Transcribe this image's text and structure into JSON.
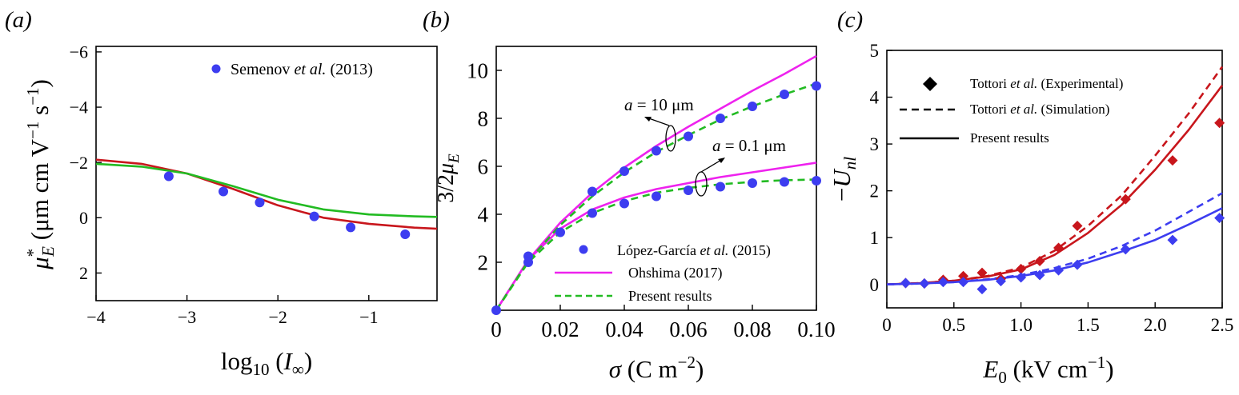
{
  "figure": {
    "panels": [
      "(a)",
      "(b)",
      "(c)"
    ]
  },
  "colors": {
    "blue": "#3d3df0",
    "red": "#c8161c",
    "green": "#22bb22",
    "magenta": "#ee22ee",
    "black": "#000000"
  },
  "chart_data": [
    {
      "id": "a",
      "type": "scatter",
      "xlabel": "log10 (I∞)",
      "ylabel": "μE* (μm cm V−1 s−1)",
      "xlim": [
        -4,
        -0.25
      ],
      "ylim": [
        -6.2,
        3
      ],
      "y_inverted": true,
      "xticks": [
        -4,
        -3,
        -2,
        -1
      ],
      "xtick_labels": [
        "−4",
        "−3",
        "−2",
        "−1"
      ],
      "yticks": [
        -6,
        -4,
        -2,
        0,
        2
      ],
      "ytick_labels": [
        "−6",
        "−4",
        "−2",
        "0",
        "2"
      ],
      "legend_position": "top-right",
      "series": [
        {
          "name": "Semenov et al. (2013)",
          "kind": "points",
          "marker": "circle",
          "color": "blue",
          "x": [
            -3.2,
            -2.6,
            -2.2,
            -1.6,
            -1.2,
            -0.6
          ],
          "y": [
            -1.5,
            -0.95,
            -0.55,
            -0.05,
            0.35,
            0.6
          ]
        },
        {
          "kind": "line",
          "color": "red",
          "x": [
            -4,
            -3.5,
            -3,
            -2.5,
            -2,
            -1.5,
            -1,
            -0.5,
            -0.25
          ],
          "y": [
            -2.1,
            -1.95,
            -1.6,
            -1.05,
            -0.45,
            0.0,
            0.22,
            0.36,
            0.4
          ]
        },
        {
          "kind": "line",
          "color": "green",
          "x": [
            -4,
            -3.5,
            -3,
            -2.5,
            -2,
            -1.5,
            -1,
            -0.5,
            -0.25
          ],
          "y": [
            -1.95,
            -1.85,
            -1.6,
            -1.15,
            -0.65,
            -0.3,
            -0.12,
            -0.05,
            -0.03
          ]
        }
      ]
    },
    {
      "id": "b",
      "type": "line",
      "xlabel": "σ (C m−2)",
      "ylabel": "3/2μE",
      "xlim": [
        0,
        0.1
      ],
      "ylim": [
        0,
        11
      ],
      "xticks": [
        0,
        0.02,
        0.04,
        0.06,
        0.08,
        0.1
      ],
      "xtick_labels": [
        "0",
        "0.02",
        "0.04",
        "0.06",
        "0.08",
        "0.10"
      ],
      "yticks": [
        2,
        4,
        6,
        8,
        10
      ],
      "ytick_labels": [
        "2",
        "4",
        "6",
        "8",
        "10"
      ],
      "legend_position": "bottom-right",
      "annotations": [
        "a = 10 μm",
        "a = 0.1 μm"
      ],
      "series": [
        {
          "name": "López-García et al. (2015)",
          "kind": "points",
          "marker": "circle",
          "color": "blue",
          "x": [
            0,
            0.01,
            0.02,
            0.03,
            0.04,
            0.05,
            0.06,
            0.07,
            0.08,
            0.09,
            0.1
          ],
          "y": [
            0,
            2.25,
            3.25,
            4.95,
            5.8,
            6.65,
            7.25,
            8.0,
            8.5,
            9.0,
            9.35
          ]
        },
        {
          "kind": "points",
          "marker": "circle",
          "color": "blue",
          "x": [
            0.01,
            0.03,
            0.04,
            0.05,
            0.06,
            0.07,
            0.08,
            0.09,
            0.1
          ],
          "y": [
            2.0,
            4.05,
            4.45,
            4.75,
            5.0,
            5.15,
            5.3,
            5.35,
            5.4
          ]
        },
        {
          "name": "Ohshima (2017)",
          "kind": "line",
          "color": "magenta",
          "x": [
            0,
            0.01,
            0.02,
            0.03,
            0.04,
            0.05,
            0.06,
            0.07,
            0.08,
            0.09,
            0.1
          ],
          "y": [
            0,
            2.1,
            3.65,
            4.9,
            5.95,
            6.85,
            7.65,
            8.4,
            9.15,
            9.85,
            10.6
          ]
        },
        {
          "kind": "line",
          "color": "magenta",
          "x": [
            0,
            0.01,
            0.02,
            0.03,
            0.04,
            0.05,
            0.06,
            0.07,
            0.08,
            0.09,
            0.1
          ],
          "y": [
            0,
            2.1,
            3.4,
            4.2,
            4.7,
            5.05,
            5.3,
            5.55,
            5.75,
            5.95,
            6.15
          ]
        },
        {
          "name": "Present results",
          "kind": "dashed",
          "color": "green",
          "x": [
            0,
            0.01,
            0.02,
            0.03,
            0.04,
            0.05,
            0.06,
            0.07,
            0.08,
            0.09,
            0.1
          ],
          "y": [
            0,
            2.05,
            3.55,
            4.75,
            5.75,
            6.6,
            7.3,
            7.95,
            8.5,
            9.0,
            9.45
          ]
        },
        {
          "kind": "dashed",
          "color": "green",
          "x": [
            0,
            0.01,
            0.02,
            0.03,
            0.04,
            0.05,
            0.06,
            0.07,
            0.08,
            0.09,
            0.1
          ],
          "y": [
            0,
            2.0,
            3.25,
            4.05,
            4.55,
            4.9,
            5.1,
            5.25,
            5.35,
            5.42,
            5.45
          ]
        }
      ]
    },
    {
      "id": "c",
      "type": "scatter",
      "xlabel": "E0 (kV cm−1)",
      "ylabel": "−Unl",
      "xlim": [
        0,
        2.5
      ],
      "ylim": [
        -0.5,
        5
      ],
      "xticks": [
        0,
        0.5,
        1.0,
        1.5,
        2.0,
        2.5
      ],
      "xtick_labels": [
        "0",
        "0.5",
        "1.0",
        "1.5",
        "2.0",
        "2.5"
      ],
      "yticks": [
        0,
        1,
        2,
        3,
        4,
        5
      ],
      "ytick_labels": [
        "0",
        "1",
        "2",
        "3",
        "4",
        "5"
      ],
      "legend_position": "top-left",
      "series": [
        {
          "name": "Tottori et al. (Experimental)",
          "kind": "legend-only",
          "marker": "diamond",
          "color": "black"
        },
        {
          "name": "Tottori et al. (Simulation)",
          "kind": "legend-only",
          "line": "dashed",
          "color": "black"
        },
        {
          "name": "Present results",
          "kind": "legend-only",
          "line": "solid",
          "color": "black"
        },
        {
          "kind": "points",
          "marker": "diamond",
          "color": "red",
          "x": [
            0.14,
            0.28,
            0.42,
            0.57,
            0.71,
            0.85,
            1.0,
            1.14,
            1.28,
            1.42,
            1.78,
            2.13,
            2.48
          ],
          "y": [
            0.03,
            0.02,
            0.1,
            0.18,
            0.25,
            0.12,
            0.33,
            0.5,
            0.78,
            1.25,
            1.82,
            2.65,
            3.45
          ]
        },
        {
          "kind": "points",
          "marker": "diamond",
          "color": "blue",
          "x": [
            0.14,
            0.28,
            0.42,
            0.57,
            0.71,
            0.85,
            1.0,
            1.14,
            1.28,
            1.42,
            1.78,
            2.13,
            2.48
          ],
          "y": [
            0.03,
            0.02,
            0.05,
            0.05,
            -0.1,
            0.07,
            0.15,
            0.2,
            0.3,
            0.42,
            0.75,
            0.95,
            1.42
          ]
        },
        {
          "kind": "line",
          "color": "red",
          "x": [
            0,
            0.25,
            0.5,
            0.75,
            1.0,
            1.25,
            1.5,
            1.75,
            2.0,
            2.25,
            2.5
          ],
          "y": [
            0,
            0.03,
            0.08,
            0.17,
            0.32,
            0.63,
            1.1,
            1.7,
            2.45,
            3.3,
            4.25
          ]
        },
        {
          "kind": "dashed",
          "color": "red",
          "x": [
            0,
            0.25,
            0.5,
            0.75,
            1.0,
            1.25,
            1.5,
            1.75,
            2.0,
            2.25,
            2.5
          ],
          "y": [
            0,
            0.03,
            0.08,
            0.18,
            0.36,
            0.72,
            1.25,
            1.9,
            2.75,
            3.65,
            4.65
          ]
        },
        {
          "kind": "line",
          "color": "blue",
          "x": [
            0,
            0.25,
            0.5,
            0.75,
            1.0,
            1.25,
            1.5,
            1.75,
            2.0,
            2.25,
            2.5
          ],
          "y": [
            0,
            0.02,
            0.05,
            0.1,
            0.18,
            0.3,
            0.47,
            0.7,
            0.95,
            1.28,
            1.63
          ]
        },
        {
          "kind": "dashed",
          "color": "blue",
          "x": [
            0,
            0.25,
            0.5,
            0.75,
            1.0,
            1.25,
            1.5,
            1.75,
            2.0,
            2.25,
            2.5
          ],
          "y": [
            0,
            0.02,
            0.05,
            0.11,
            0.2,
            0.35,
            0.55,
            0.82,
            1.15,
            1.55,
            1.95
          ]
        }
      ]
    }
  ]
}
